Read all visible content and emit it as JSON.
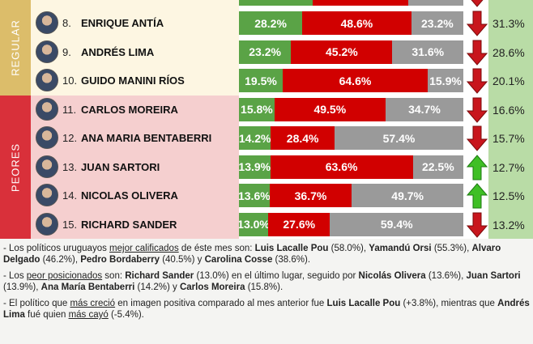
{
  "chart_data": {
    "type": "bar",
    "stacked": true,
    "orientation": "horizontal",
    "colors": {
      "positive": "#5aa346",
      "negative": "#d10000",
      "neutral": "#9a9a9a",
      "trend_down": "#c8161d",
      "trend_up": "#3fbf25",
      "regular_section": "#dcbd6a",
      "peores_section": "#d9303a",
      "regular_bg": "#fdf6e2",
      "peores_bg": "#f5cfcf",
      "previous_col": "#b9dca6"
    },
    "sections": [
      {
        "label": "REGULAR",
        "ranks": [
          8,
          9,
          10
        ]
      },
      {
        "label": "PEORES",
        "ranks": [
          11,
          12,
          13,
          14,
          15
        ]
      }
    ],
    "partial_top_row": {
      "positive": 33,
      "negative": 42.6,
      "neutral": 24.4,
      "trend": "down"
    },
    "rows": [
      {
        "rank": "8.",
        "name": "ENRIQUE ANTÍA",
        "positive": "28.2%",
        "negative": "48.6%",
        "neutral": "23.2%",
        "trend": "down",
        "previous": "31.3%"
      },
      {
        "rank": "9.",
        "name": "ANDRÉS LIMA",
        "positive": "23.2%",
        "negative": "45.2%",
        "neutral": "31.6%",
        "trend": "down",
        "previous": "28.6%"
      },
      {
        "rank": "10.",
        "name": "GUIDO MANINI RÍOS",
        "positive": "19.5%",
        "negative": "64.6%",
        "neutral": "15.9%",
        "trend": "down",
        "previous": "20.1%"
      },
      {
        "rank": "11.",
        "name": "CARLOS MOREIRA",
        "positive": "15.8%",
        "negative": "49.5%",
        "neutral": "34.7%",
        "trend": "down",
        "previous": "16.6%"
      },
      {
        "rank": "12.",
        "name": "ANA MARIA BENTABERRI",
        "positive": "14.2%",
        "negative": "28.4%",
        "neutral": "57.4%",
        "trend": "down",
        "previous": "15.7%"
      },
      {
        "rank": "13.",
        "name": "JUAN SARTORI",
        "positive": "13.9%",
        "negative": "63.6%",
        "neutral": "22.5%",
        "trend": "up",
        "previous": "12.7%"
      },
      {
        "rank": "14.",
        "name": "NICOLAS OLIVERA",
        "positive": "13.6%",
        "negative": "36.7%",
        "neutral": "49.7%",
        "trend": "up",
        "previous": "12.5%"
      },
      {
        "rank": "15.",
        "name": "RICHARD SANDER",
        "positive": "13.0%",
        "negative": "27.6%",
        "neutral": "59.4%",
        "trend": "down",
        "previous": "13.2%"
      }
    ]
  },
  "notes": [
    {
      "parts": [
        [
          "- Los políticos uruguayos ",
          ""
        ],
        [
          "mejor calificados",
          "u"
        ],
        [
          " de éste mes son: ",
          ""
        ],
        [
          "Luis Lacalle Pou",
          "b"
        ],
        [
          " (58.0%), ",
          ""
        ],
        [
          "Yamandú Orsi",
          "b"
        ],
        [
          " (55.3%), ",
          ""
        ],
        [
          "Alvaro Delgado",
          "b"
        ],
        [
          " (46.2%), ",
          ""
        ],
        [
          "Pedro Bordaberry",
          "b"
        ],
        [
          " (40.5%) y ",
          ""
        ],
        [
          "Carolina Cosse",
          "b"
        ],
        [
          " (38.6%).",
          ""
        ]
      ]
    },
    {
      "parts": [
        [
          "- Los ",
          ""
        ],
        [
          "peor posicionados",
          "u"
        ],
        [
          " son:  ",
          ""
        ],
        [
          "Richard Sander",
          "b"
        ],
        [
          " (13.0%) en el último lugar, seguido por ",
          ""
        ],
        [
          "Nicolás Olivera",
          "b"
        ],
        [
          " (13.6%), ",
          ""
        ],
        [
          "Juan Sartori",
          "b"
        ],
        [
          " (13.9%), ",
          ""
        ],
        [
          "Ana María Bentaberri",
          "b"
        ],
        [
          " (14.2%) y ",
          ""
        ],
        [
          "Carlos Moreira",
          "b"
        ],
        [
          " (15.8%).",
          ""
        ]
      ]
    },
    {
      "parts": [
        [
          "- El político que ",
          ""
        ],
        [
          "más creció",
          "u"
        ],
        [
          " en imagen positiva comparado al mes anterior fue ",
          ""
        ],
        [
          "Luis Lacalle Pou",
          "b"
        ],
        [
          " (+3.8%), mientras que ",
          ""
        ],
        [
          "Andrés Lima",
          "b"
        ],
        [
          " fué quien ",
          ""
        ],
        [
          "más cayó",
          "u"
        ],
        [
          " (-5.4%).",
          ""
        ]
      ]
    }
  ]
}
